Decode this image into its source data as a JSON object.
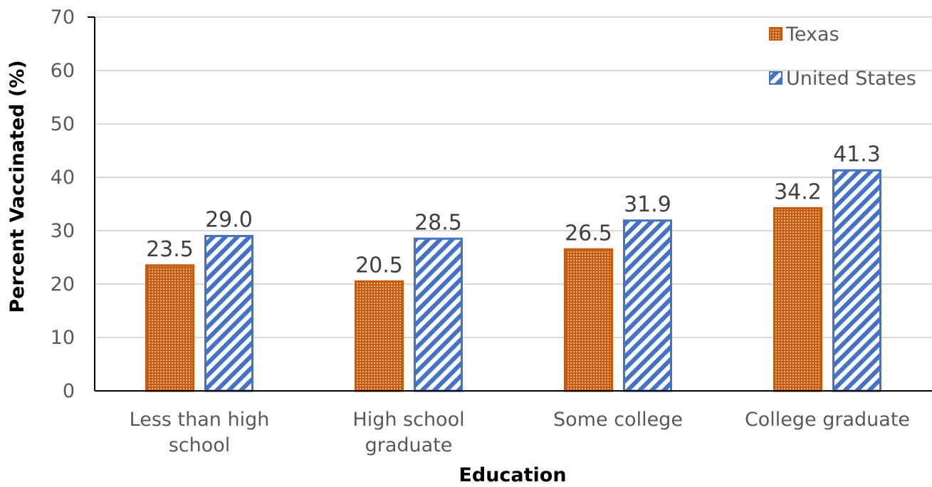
{
  "chart_data": {
    "type": "bar",
    "title": "",
    "xlabel": "Education",
    "ylabel": "Percent Vaccinated (%)",
    "ylim": [
      0,
      70
    ],
    "yticks": [
      0,
      10,
      20,
      30,
      40,
      50,
      60,
      70
    ],
    "grid": "horizontal",
    "legend_position": "top-right",
    "categories": [
      [
        "Less than high",
        "school"
      ],
      [
        "High school",
        "graduate"
      ],
      [
        "Some college"
      ],
      [
        "College graduate"
      ]
    ],
    "series": [
      {
        "name": "Texas",
        "values": [
          23.5,
          20.5,
          26.5,
          34.2
        ],
        "labels": [
          "23.5",
          "20.5",
          "26.5",
          "34.2"
        ],
        "color": "#c55a11",
        "pattern": "dotted"
      },
      {
        "name": "United States",
        "values": [
          29.0,
          28.5,
          31.9,
          41.3
        ],
        "labels": [
          "29.0",
          "28.5",
          "31.9",
          "41.3"
        ],
        "color": "#4472c4",
        "pattern": "diagonal-stripes"
      }
    ]
  }
}
